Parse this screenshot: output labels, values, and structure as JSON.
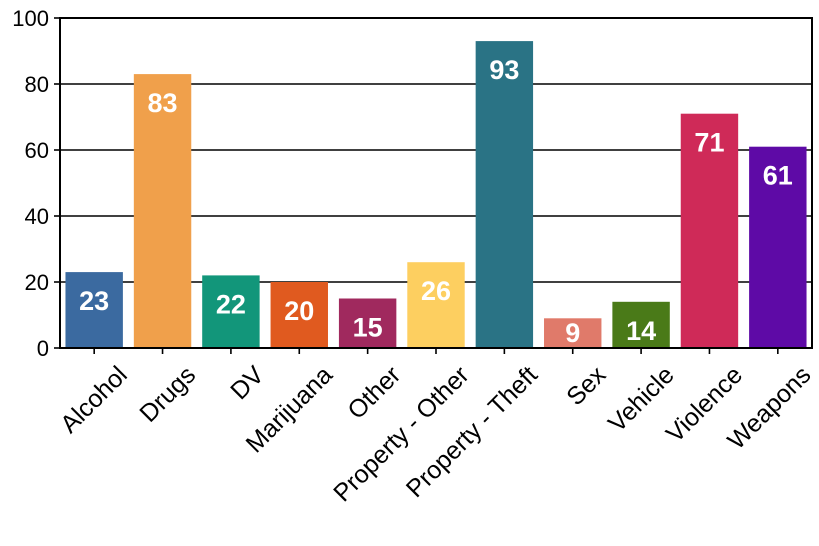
{
  "chart_data": {
    "type": "bar",
    "title": "",
    "xlabel": "",
    "ylabel": "",
    "ylim": [
      0,
      100
    ],
    "yticks": [
      0,
      20,
      40,
      60,
      80,
      100
    ],
    "grid": true,
    "legend": "none",
    "categories": [
      "Alcohol",
      "Drugs",
      "DV",
      "Marijuana",
      "Other",
      "Property - Other",
      "Property - Theft",
      "Sex",
      "Vehicle",
      "Violence",
      "Weapons"
    ],
    "values": [
      23,
      83,
      22,
      20,
      15,
      26,
      93,
      9,
      14,
      71,
      61
    ],
    "colors": [
      "#3b6aa0",
      "#f0a04b",
      "#12967a",
      "#e05a1f",
      "#a0295e",
      "#fdcf60",
      "#2a7385",
      "#e07a6a",
      "#4a7a18",
      "#cf2a58",
      "#5e0aa6"
    ]
  }
}
